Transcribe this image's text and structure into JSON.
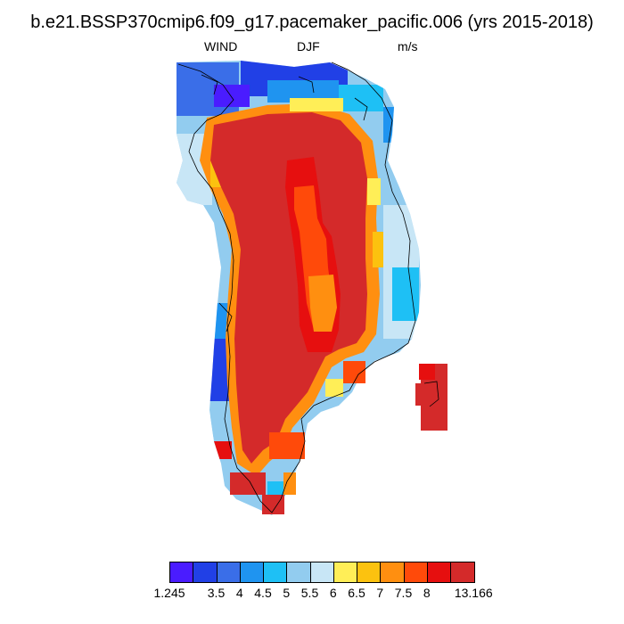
{
  "header": {
    "title": "b.e21.BSSP370cmip6.f09_g17.pacemaker_pacific.006 (yrs 2015-2018)",
    "variable": "WIND",
    "season": "DJF",
    "units": "m/s"
  },
  "map": {
    "region": "Greenland",
    "field": "wind speed",
    "interior_level": "13.166",
    "coastline_color": "#000000"
  },
  "colorbar": {
    "colors": [
      "#4a1cff",
      "#2140e6",
      "#3a6ee8",
      "#1f94f0",
      "#1ec0f5",
      "#92ccef",
      "#c8e6f6",
      "#ffee57",
      "#fcc20f",
      "#ff8f10",
      "#ff4a0a",
      "#e60f0f",
      "#d42a2a"
    ],
    "labels": [
      {
        "text": "1.245",
        "boundary": 0
      },
      {
        "text": "3.5",
        "boundary": 2
      },
      {
        "text": "4",
        "boundary": 3
      },
      {
        "text": "4.5",
        "boundary": 4
      },
      {
        "text": "5",
        "boundary": 5
      },
      {
        "text": "5.5",
        "boundary": 6
      },
      {
        "text": "6",
        "boundary": 7
      },
      {
        "text": "6.5",
        "boundary": 8
      },
      {
        "text": "7",
        "boundary": 9
      },
      {
        "text": "7.5",
        "boundary": 10
      },
      {
        "text": "8",
        "boundary": 11
      },
      {
        "text": "13.166",
        "boundary": 13
      }
    ]
  }
}
